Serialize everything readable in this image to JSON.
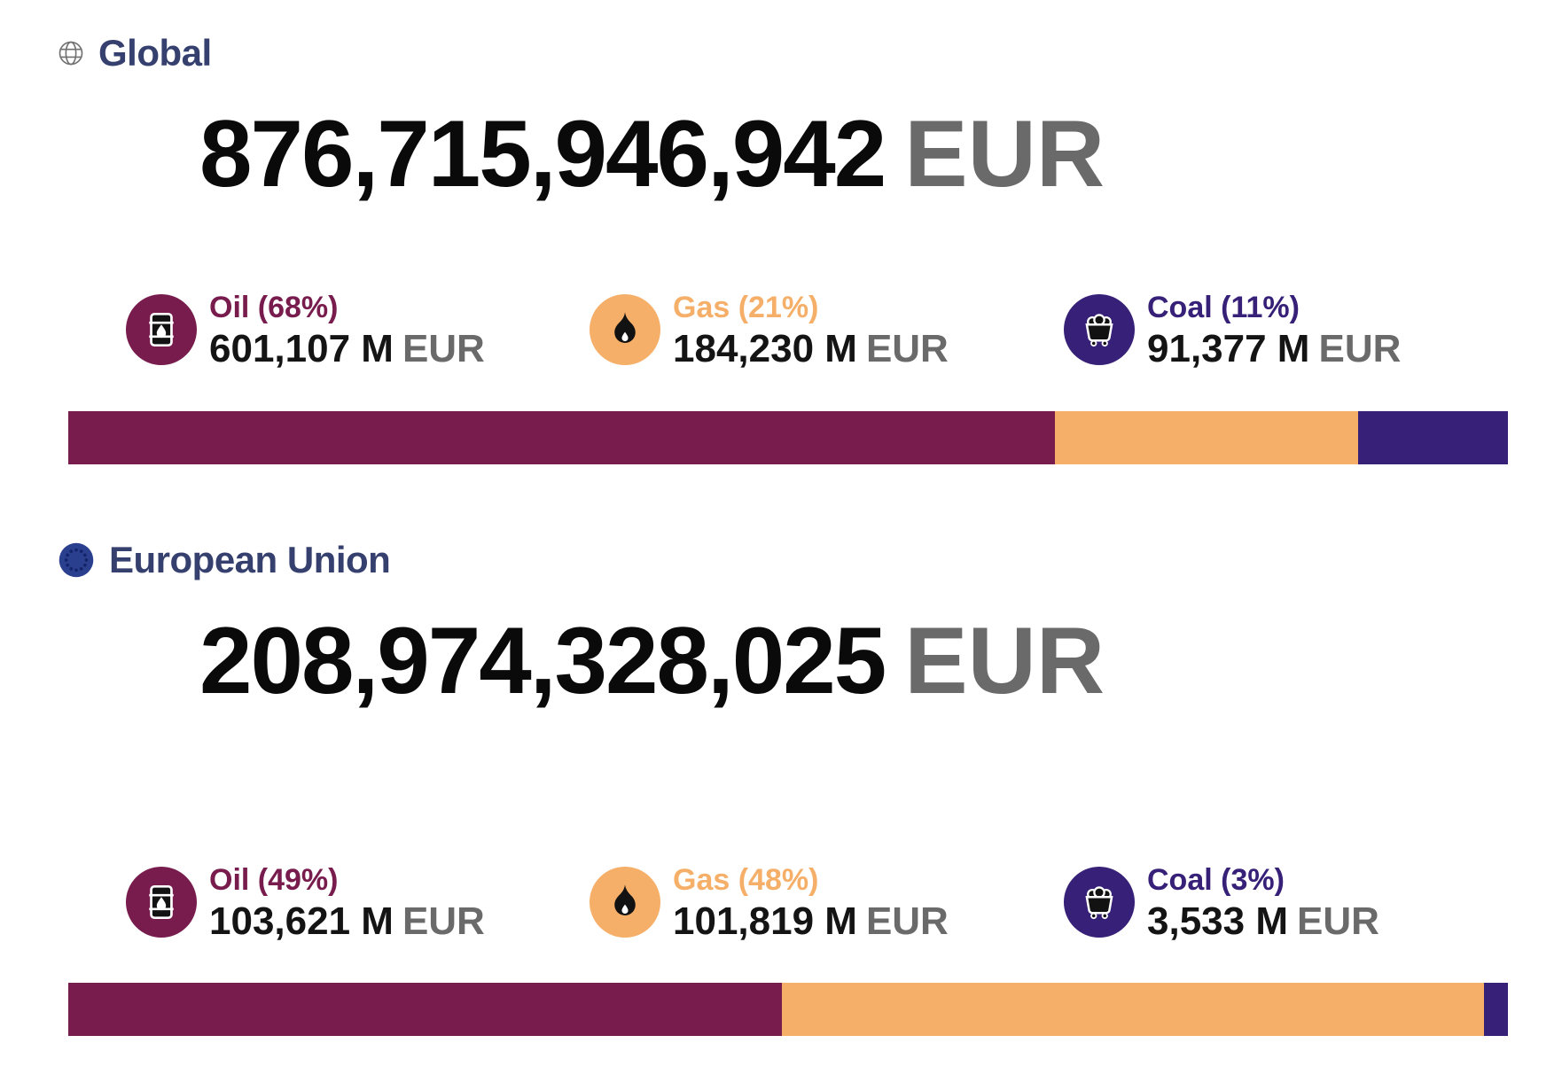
{
  "colors": {
    "oil": "#771C4D",
    "gas": "#F5AF68",
    "coal": "#362078",
    "header_navy": "#35406F",
    "currency_gray": "#6A6A6A",
    "globe_gray": "#707070",
    "eu_disc_blue": "#2B3F8F",
    "eu_star": "#13246A"
  },
  "sections": [
    {
      "id": "global",
      "title": "Global",
      "icon": "globe-icon",
      "total": {
        "value": "876,715,946,942",
        "currency": "EUR"
      },
      "stats": [
        {
          "fuel": "Oil",
          "icon": "oil-barrel-icon",
          "label": "Oil (68%)",
          "value": "601,107 M",
          "currency": "EUR",
          "amount_m": 601107,
          "color": "#771C4D"
        },
        {
          "fuel": "Gas",
          "icon": "gas-flame-icon",
          "label": "Gas (21%)",
          "value": "184,230 M",
          "currency": "EUR",
          "amount_m": 184230,
          "color": "#F5AF68"
        },
        {
          "fuel": "Coal",
          "icon": "coal-cart-icon",
          "label": "Coal (11%)",
          "value": "91,377 M",
          "currency": "EUR",
          "amount_m": 91377,
          "color": "#362078"
        }
      ]
    },
    {
      "id": "european-union",
      "title": "European Union",
      "icon": "eu-flag-icon",
      "total": {
        "value": "208,974,328,025",
        "currency": "EUR"
      },
      "stats": [
        {
          "fuel": "Oil",
          "icon": "oil-barrel-icon",
          "label": "Oil (49%)",
          "value": "103,621 M",
          "currency": "EUR",
          "amount_m": 103621,
          "color": "#771C4D"
        },
        {
          "fuel": "Gas",
          "icon": "gas-flame-icon",
          "label": "Gas (48%)",
          "value": "101,819 M",
          "currency": "EUR",
          "amount_m": 101819,
          "color": "#F5AF68"
        },
        {
          "fuel": "Coal",
          "icon": "coal-cart-icon",
          "label": "Coal (3%)",
          "value": "3,533 M",
          "currency": "EUR",
          "amount_m": 3533,
          "color": "#362078"
        }
      ]
    }
  ],
  "chart_data": [
    {
      "type": "bar",
      "subtype": "horizontal-stacked-100pct",
      "title": "Global",
      "total_label": "876,715,946,942 EUR",
      "categories": [
        "Oil",
        "Gas",
        "Coal"
      ],
      "values": [
        601107,
        184230,
        91377
      ],
      "values_unit": "M EUR",
      "percent_labels": [
        68,
        21,
        11
      ],
      "colors": [
        "#771C4D",
        "#F5AF68",
        "#362078"
      ],
      "legend_position": "above-bar",
      "axes": "none"
    },
    {
      "type": "bar",
      "subtype": "horizontal-stacked-100pct",
      "title": "European Union",
      "total_label": "208,974,328,025 EUR",
      "categories": [
        "Oil",
        "Gas",
        "Coal"
      ],
      "values": [
        103621,
        101819,
        3533
      ],
      "values_unit": "M EUR",
      "percent_labels": [
        49,
        48,
        3
      ],
      "colors": [
        "#771C4D",
        "#F5AF68",
        "#362078"
      ],
      "legend_position": "above-bar",
      "axes": "none"
    }
  ]
}
